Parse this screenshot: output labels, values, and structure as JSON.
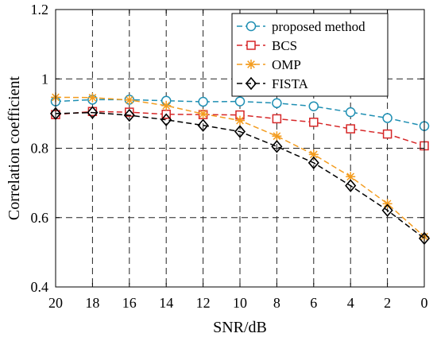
{
  "chart_data": {
    "type": "line",
    "xlabel": "SNR/dB",
    "ylabel": "Correlation coefficient",
    "x": [
      20,
      18,
      16,
      14,
      12,
      10,
      8,
      6,
      4,
      2,
      0
    ],
    "x_reversed": true,
    "xlim": [
      20,
      0
    ],
    "ylim": [
      0.4,
      1.2
    ],
    "yticks": [
      "0.4",
      "0.6",
      "0.8",
      "1",
      "1.2"
    ],
    "grid": true,
    "legend_position": "top-right",
    "series": [
      {
        "name": "proposed method",
        "color": "#1f8fb3",
        "marker": "circle",
        "values": [
          0.935,
          0.94,
          0.94,
          0.937,
          0.934,
          0.935,
          0.93,
          0.921,
          0.904,
          0.887,
          0.864
        ]
      },
      {
        "name": "BCS",
        "color": "#d62728",
        "marker": "square",
        "values": [
          0.897,
          0.906,
          0.904,
          0.898,
          0.897,
          0.896,
          0.885,
          0.875,
          0.856,
          0.841,
          0.807
        ]
      },
      {
        "name": "OMP",
        "color": "#f39c1f",
        "marker": "star",
        "values": [
          0.947,
          0.946,
          0.939,
          0.923,
          0.899,
          0.88,
          0.835,
          0.782,
          0.718,
          0.64,
          0.545
        ]
      },
      {
        "name": "FISTA",
        "color": "#000000",
        "marker": "diamond",
        "values": [
          0.9,
          0.903,
          0.895,
          0.882,
          0.866,
          0.848,
          0.805,
          0.758,
          0.692,
          0.621,
          0.54
        ]
      }
    ]
  }
}
